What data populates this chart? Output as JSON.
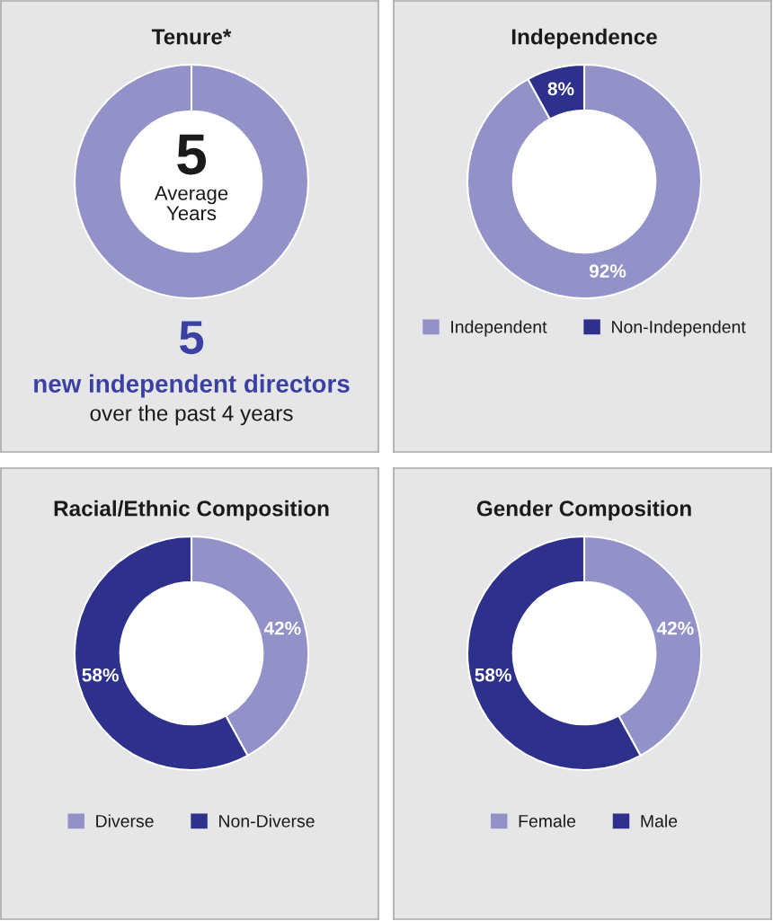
{
  "chart_data": [
    {
      "type": "other",
      "title": "Tenure*",
      "annotations": [
        "5",
        "Average\nYears",
        "5",
        "new independent directors",
        "over the past 4 years"
      ]
    },
    {
      "type": "donut",
      "title": "Independence",
      "categories": [
        "Independent",
        "Non-Independent"
      ],
      "values": [
        92,
        8
      ],
      "colors": [
        "#9292c8",
        "#2d318c"
      ],
      "value_labels": [
        "92%",
        "8%"
      ],
      "legend": "bottom"
    },
    {
      "type": "donut",
      "title": "Racial/Ethnic Composition",
      "categories": [
        "Diverse",
        "Non-Diverse"
      ],
      "values": [
        42,
        58
      ],
      "colors": [
        "#9292c8",
        "#2d318c"
      ],
      "value_labels": [
        "42%",
        "58%"
      ],
      "legend": "bottom"
    },
    {
      "type": "donut",
      "title": "Gender Composition",
      "categories": [
        "Female",
        "Male"
      ],
      "values": [
        42,
        58
      ],
      "colors": [
        "#9292c8",
        "#2d318c"
      ],
      "value_labels": [
        "42%",
        "58%"
      ],
      "legend": "bottom"
    }
  ]
}
